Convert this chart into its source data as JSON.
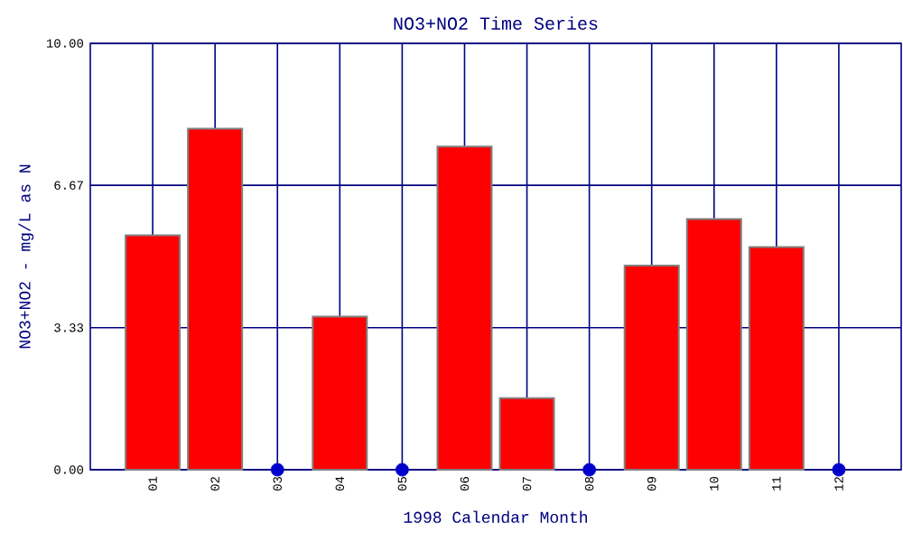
{
  "chart_data": {
    "type": "bar",
    "title": "NO3+NO2 Time Series",
    "xlabel": "1998 Calendar Month",
    "ylabel": "NO3+NO2 - mg/L as N",
    "categories": [
      "01",
      "02",
      "03",
      "04",
      "05",
      "06",
      "07",
      "08",
      "09",
      "10",
      "11",
      "12"
    ],
    "series": [
      {
        "color": "#ff0000",
        "values": [
          5.5,
          8.0,
          null,
          3.59,
          null,
          7.58,
          1.68,
          null,
          4.79,
          5.88,
          5.22,
          null
        ]
      },
      {
        "type": "scatter",
        "marker": "circle",
        "color": "#0000cc",
        "values": [
          null,
          null,
          0,
          null,
          0,
          null,
          null,
          0,
          null,
          null,
          null,
          0
        ]
      }
    ],
    "ylim": [
      0,
      10
    ],
    "yticks": [
      {
        "value": 0,
        "label": "0.00"
      },
      {
        "value": 3.33,
        "label": "3.33"
      },
      {
        "value": 6.67,
        "label": "6.67"
      },
      {
        "value": 10,
        "label": "10.00"
      }
    ],
    "grid": true
  }
}
